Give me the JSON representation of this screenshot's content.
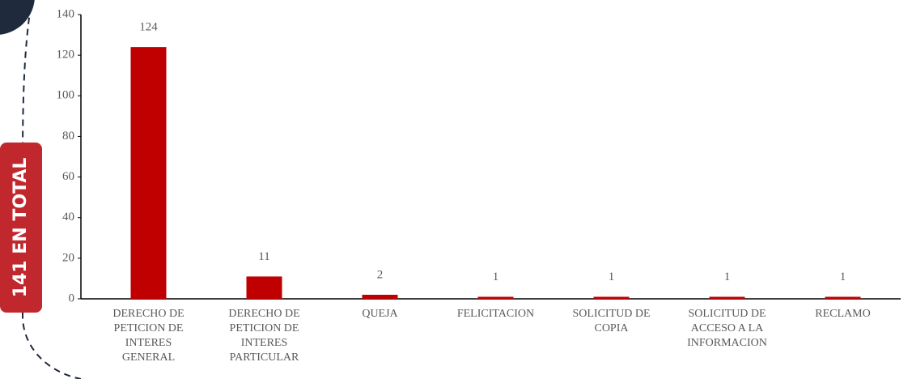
{
  "side_label": "141 EN TOTAL",
  "chart_data": {
    "type": "bar",
    "categories": [
      "DERECHO DE PETICION DE INTERES GENERAL",
      "DERECHO DE PETICION DE INTERES PARTICULAR",
      "QUEJA",
      "FELICITACION",
      "SOLICITUD DE COPIA",
      "SOLICITUD DE ACCESO A LA INFORMACION",
      "RECLAMO"
    ],
    "values": [
      124,
      11,
      2,
      1,
      1,
      1,
      1
    ],
    "color": "#c00000",
    "ylim": [
      0,
      140
    ],
    "yticks": [
      0,
      20,
      40,
      60,
      80,
      100,
      120,
      140
    ],
    "grid": false
  }
}
